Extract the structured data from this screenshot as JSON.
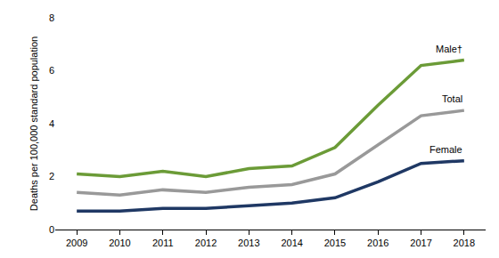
{
  "chart_data": {
    "type": "line",
    "y_label": "Deaths per 100,000 standard population",
    "x": [
      2009,
      2010,
      2011,
      2012,
      2013,
      2014,
      2015,
      2016,
      2017,
      2018
    ],
    "series": [
      {
        "name": "Male†",
        "color": "#6b9b37",
        "values": [
          2.1,
          2.0,
          2.2,
          2.0,
          2.3,
          2.4,
          3.1,
          4.7,
          6.2,
          6.4
        ]
      },
      {
        "name": "Total",
        "color": "#999999",
        "values": [
          1.4,
          1.3,
          1.5,
          1.4,
          1.6,
          1.7,
          2.1,
          3.2,
          4.3,
          4.5
        ]
      },
      {
        "name": "Female",
        "color": "#1f3864",
        "values": [
          0.7,
          0.7,
          0.8,
          0.8,
          0.9,
          1.0,
          1.2,
          1.8,
          2.5,
          2.6
        ]
      }
    ],
    "xlim": [
      2008.5,
      2018.5
    ],
    "xticks": [
      2009,
      2010,
      2011,
      2012,
      2013,
      2014,
      2015,
      2016,
      2017,
      2018
    ],
    "ylim": [
      0,
      8
    ],
    "yticks": [
      0,
      2,
      4,
      6,
      8
    ],
    "grid": false
  }
}
